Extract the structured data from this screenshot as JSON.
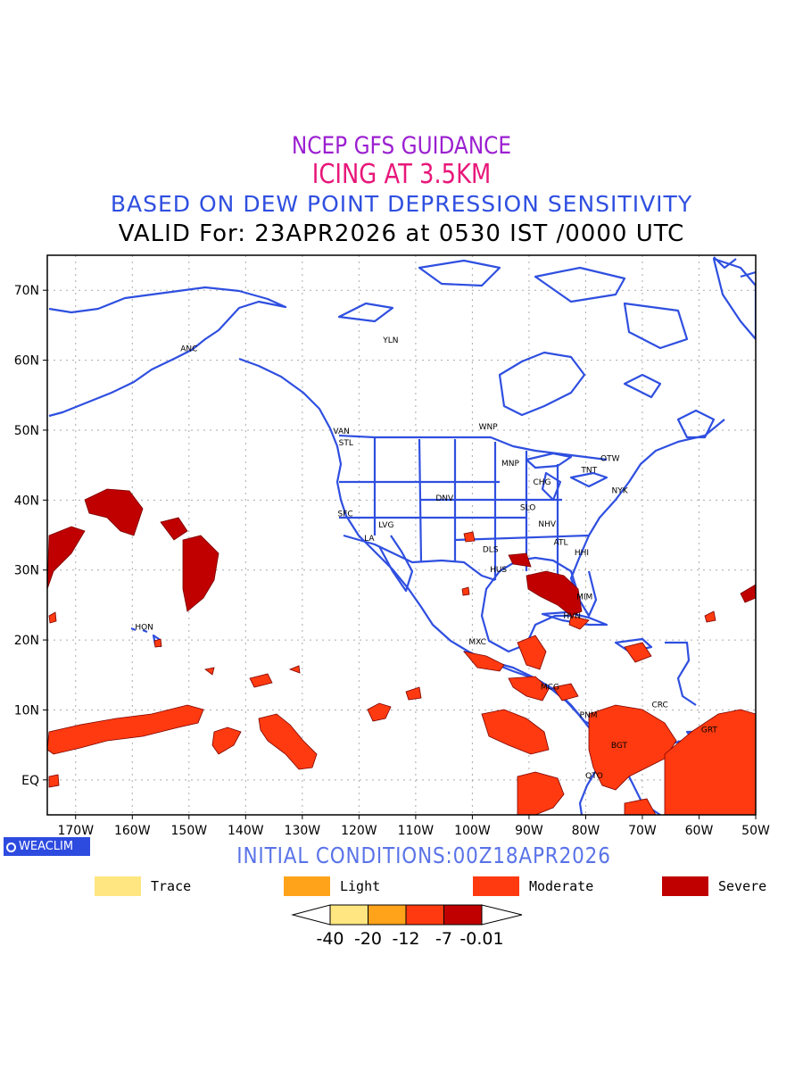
{
  "titles": {
    "line1": "NCEP GFS GUIDANCE",
    "line2": "ICING AT 3.5KM",
    "line3": "BASED ON DEW POINT DEPRESSION SENSITIVITY",
    "line4": "VALID For: 23APR2026 at 0530 IST /0000 UTC"
  },
  "badge": {
    "label": "WEACLIM"
  },
  "initial_conditions": "INITIAL CONDITIONS:00Z18APR2026",
  "legend": [
    {
      "label": "Trace",
      "color": "#ffe680"
    },
    {
      "label": "Light",
      "color": "#ffa31a"
    },
    {
      "label": "Moderate",
      "color": "#ff3a10"
    },
    {
      "label": "Severe",
      "color": "#c00000"
    }
  ],
  "colorbar": {
    "labels": [
      "-40",
      "-20",
      "-12",
      "-7",
      "-0.01"
    ],
    "colors": [
      "#ffe680",
      "#ffa31a",
      "#ff3a10",
      "#c00000"
    ]
  },
  "map": {
    "lon_range": [
      -175,
      -50
    ],
    "lat_range": [
      -5,
      75
    ],
    "lon_ticks": [
      "170W",
      "160W",
      "150W",
      "140W",
      "130W",
      "120W",
      "110W",
      "100W",
      "90W",
      "80W",
      "70W",
      "60W",
      "50W"
    ],
    "lat_ticks": [
      "70N",
      "60N",
      "50N",
      "40N",
      "30N",
      "20N",
      "10N",
      "EQ"
    ],
    "coastline_color": "#2f4fe0",
    "stations": [
      {
        "code": "ANC",
        "lon": -150,
        "lat": 61.3
      },
      {
        "code": "HON",
        "lon": -157.9,
        "lat": 21.5
      },
      {
        "code": "VAN",
        "lon": -123.1,
        "lat": 49.5
      },
      {
        "code": "STL",
        "lon": -122.3,
        "lat": 47.8
      },
      {
        "code": "WNP",
        "lon": -97.2,
        "lat": 50.1
      },
      {
        "code": "MNP",
        "lon": -93.3,
        "lat": 44.9
      },
      {
        "code": "CHG",
        "lon": -87.7,
        "lat": 42.2
      },
      {
        "code": "TNT",
        "lon": -79.4,
        "lat": 43.9
      },
      {
        "code": "OTW",
        "lon": -75.7,
        "lat": 45.6
      },
      {
        "code": "NYK",
        "lon": -74,
        "lat": 41
      },
      {
        "code": "DNV",
        "lon": -104.9,
        "lat": 39.9
      },
      {
        "code": "SFC",
        "lon": -122.4,
        "lat": 37.7
      },
      {
        "code": "LVG",
        "lon": -115.2,
        "lat": 36.1
      },
      {
        "code": "LA",
        "lon": -118.2,
        "lat": 34.2
      },
      {
        "code": "SLO",
        "lon": -90.2,
        "lat": 38.6
      },
      {
        "code": "NHV",
        "lon": -86.8,
        "lat": 36.2
      },
      {
        "code": "ATL",
        "lon": -84.4,
        "lat": 33.6
      },
      {
        "code": "HHI",
        "lon": -80.7,
        "lat": 32.1
      },
      {
        "code": "DLS",
        "lon": -96.8,
        "lat": 32.6
      },
      {
        "code": "HUS",
        "lon": -95.4,
        "lat": 29.7
      },
      {
        "code": "MIM",
        "lon": -80.2,
        "lat": 25.8
      },
      {
        "code": "HVN",
        "lon": -82.4,
        "lat": 23.1
      },
      {
        "code": "MXC",
        "lon": -99.1,
        "lat": 19.4
      },
      {
        "code": "MCG",
        "lon": -86.3,
        "lat": 12.9
      },
      {
        "code": "PNM",
        "lon": -79.5,
        "lat": 8.9
      },
      {
        "code": "CRC",
        "lon": -66.9,
        "lat": 10.4
      },
      {
        "code": "BGT",
        "lon": -74.1,
        "lat": 4.6
      },
      {
        "code": "QTO",
        "lon": -78.5,
        "lat": 0.2
      },
      {
        "code": "GRT",
        "lon": -58.2,
        "lat": 6.8
      },
      {
        "code": "YLN",
        "lon": -114.4,
        "lat": 62.5
      }
    ]
  }
}
